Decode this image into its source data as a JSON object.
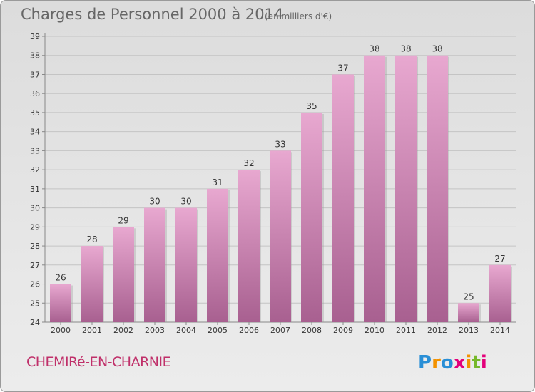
{
  "title": "Charges de Personnel 2000 à 2014",
  "subtitle": "(en milliers d'€)",
  "commune": "CHEMIRé-EN-CHARNIE",
  "logo": {
    "text": "Proxiti",
    "letters": [
      "P",
      "r",
      "o",
      "x",
      "i",
      "t",
      "i"
    ],
    "letter_colors": [
      "#2a8fd6",
      "#f39200",
      "#2a8fd6",
      "#e3007a",
      "#f39200",
      "#76b82a",
      "#e3007a"
    ]
  },
  "colors": {
    "bar_light": "#e8a8d0",
    "bar_dark": "#a86090",
    "grid": "#c4c4c4",
    "axis": "#888888"
  },
  "chart_data": {
    "type": "bar",
    "categories": [
      "2000",
      "2001",
      "2002",
      "2003",
      "2004",
      "2005",
      "2006",
      "2007",
      "2008",
      "2009",
      "2010",
      "2011",
      "2012",
      "2013",
      "2014"
    ],
    "values": [
      26,
      28,
      29,
      30,
      30,
      31,
      32,
      33,
      35,
      37,
      38,
      38,
      38,
      25,
      27
    ],
    "data_labels": [
      "26",
      "28",
      "29",
      "30",
      "30",
      "31",
      "32",
      "33",
      "35",
      "37",
      "38",
      "38",
      "38",
      "25",
      "27"
    ],
    "title": "Charges de Personnel 2000 à 2014",
    "subtitle": "(en milliers d'€)",
    "xlabel": "",
    "ylabel": "",
    "ylim": [
      24,
      39
    ],
    "yticks": [
      "24",
      "25",
      "26",
      "27",
      "28",
      "29",
      "30",
      "31",
      "32",
      "33",
      "34",
      "35",
      "36",
      "37",
      "38",
      "39"
    ],
    "grid": true,
    "legend": "none"
  }
}
